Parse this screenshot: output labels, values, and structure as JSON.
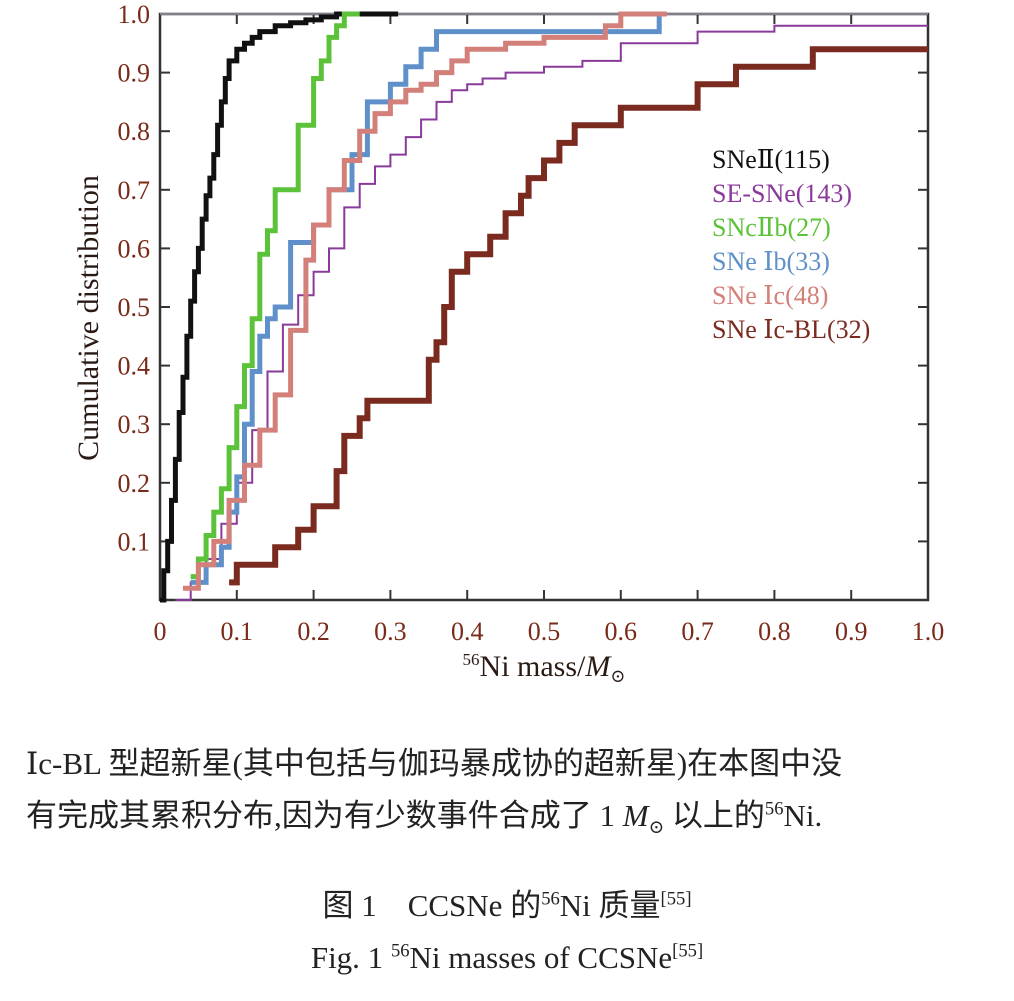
{
  "chart_data": {
    "type": "line",
    "xlabel_sup": "56",
    "xlabel_main": "Ni mass/",
    "xlabel_unit": "M",
    "xlabel_unit_sub": "⊙",
    "ylabel": "Cumulative distribution",
    "xlim": [
      0,
      1.0
    ],
    "ylim": [
      0,
      1.0
    ],
    "x_ticks": [
      "0",
      "0.1",
      "0.2",
      "0.3",
      "0.4",
      "0.5",
      "0.6",
      "0.7",
      "0.8",
      "0.9",
      "1.0"
    ],
    "y_ticks": [
      "0.1",
      "0.2",
      "0.3",
      "0.4",
      "0.5",
      "0.6",
      "0.7",
      "0.8",
      "0.9",
      "1.0"
    ],
    "grid": false,
    "legend_position": "right",
    "series": [
      {
        "name": "SNeⅡ(115)",
        "color": "#111111",
        "x": [
          0.0,
          0.005,
          0.01,
          0.015,
          0.02,
          0.025,
          0.03,
          0.035,
          0.04,
          0.045,
          0.05,
          0.055,
          0.06,
          0.065,
          0.07,
          0.075,
          0.08,
          0.085,
          0.09,
          0.1,
          0.11,
          0.12,
          0.13,
          0.14,
          0.15,
          0.17,
          0.19,
          0.21,
          0.23,
          0.26,
          0.31
        ],
        "y": [
          0.0,
          0.05,
          0.1,
          0.17,
          0.24,
          0.32,
          0.38,
          0.45,
          0.51,
          0.56,
          0.6,
          0.65,
          0.69,
          0.72,
          0.76,
          0.81,
          0.85,
          0.89,
          0.92,
          0.94,
          0.95,
          0.96,
          0.97,
          0.97,
          0.98,
          0.985,
          0.99,
          0.995,
          1.0,
          1.0,
          1.0
        ]
      },
      {
        "name": "SE-SNe(143)",
        "color": "#8a3a9a",
        "x": [
          0.02,
          0.04,
          0.06,
          0.08,
          0.1,
          0.12,
          0.14,
          0.16,
          0.18,
          0.2,
          0.22,
          0.24,
          0.26,
          0.28,
          0.3,
          0.32,
          0.34,
          0.36,
          0.38,
          0.4,
          0.42,
          0.45,
          0.5,
          0.55,
          0.6,
          0.7,
          0.8,
          0.9,
          1.0
        ],
        "y": [
          0.0,
          0.03,
          0.07,
          0.13,
          0.2,
          0.29,
          0.39,
          0.47,
          0.52,
          0.56,
          0.6,
          0.67,
          0.71,
          0.74,
          0.76,
          0.79,
          0.82,
          0.85,
          0.87,
          0.88,
          0.89,
          0.9,
          0.91,
          0.92,
          0.95,
          0.97,
          0.98,
          0.98,
          0.98
        ]
      },
      {
        "name": "SNcⅡb(27)",
        "color": "#5cc23a",
        "x": [
          0.04,
          0.05,
          0.06,
          0.07,
          0.08,
          0.09,
          0.1,
          0.11,
          0.12,
          0.13,
          0.14,
          0.15,
          0.18,
          0.2,
          0.21,
          0.22,
          0.23,
          0.24,
          0.25,
          0.26
        ],
        "y": [
          0.04,
          0.07,
          0.11,
          0.15,
          0.19,
          0.26,
          0.33,
          0.4,
          0.48,
          0.59,
          0.63,
          0.7,
          0.81,
          0.89,
          0.92,
          0.96,
          0.98,
          1.0,
          1.0,
          1.0
        ]
      },
      {
        "name": "SNe Ⅰb(33)",
        "color": "#5f90c9",
        "x": [
          0.04,
          0.06,
          0.08,
          0.09,
          0.1,
          0.11,
          0.12,
          0.13,
          0.14,
          0.15,
          0.17,
          0.2,
          0.22,
          0.25,
          0.27,
          0.3,
          0.32,
          0.34,
          0.36,
          0.5,
          0.6,
          0.64,
          0.65
        ],
        "y": [
          0.03,
          0.06,
          0.09,
          0.15,
          0.21,
          0.3,
          0.39,
          0.45,
          0.48,
          0.5,
          0.61,
          0.64,
          0.7,
          0.76,
          0.85,
          0.88,
          0.91,
          0.94,
          0.97,
          0.97,
          0.97,
          0.97,
          1.0
        ]
      },
      {
        "name": "SNe Ⅰc(48)",
        "color": "#d4807a",
        "x": [
          0.03,
          0.05,
          0.07,
          0.09,
          0.11,
          0.13,
          0.15,
          0.17,
          0.19,
          0.2,
          0.22,
          0.24,
          0.26,
          0.28,
          0.3,
          0.32,
          0.34,
          0.36,
          0.38,
          0.4,
          0.45,
          0.5,
          0.55,
          0.58,
          0.6,
          0.66
        ],
        "y": [
          0.02,
          0.06,
          0.1,
          0.17,
          0.23,
          0.29,
          0.35,
          0.46,
          0.58,
          0.64,
          0.7,
          0.75,
          0.8,
          0.83,
          0.85,
          0.87,
          0.88,
          0.9,
          0.92,
          0.94,
          0.95,
          0.96,
          0.96,
          0.98,
          1.0,
          1.0
        ]
      },
      {
        "name": "SNe Ⅰc-BL(32)",
        "color": "#7a2a1e",
        "x": [
          0.09,
          0.1,
          0.15,
          0.18,
          0.2,
          0.23,
          0.24,
          0.26,
          0.27,
          0.33,
          0.35,
          0.36,
          0.37,
          0.38,
          0.4,
          0.43,
          0.45,
          0.47,
          0.48,
          0.5,
          0.52,
          0.54,
          0.55,
          0.58,
          0.6,
          0.65,
          0.7,
          0.73,
          0.75,
          0.82,
          0.85,
          0.92,
          1.0
        ],
        "y": [
          0.03,
          0.06,
          0.09,
          0.12,
          0.16,
          0.22,
          0.28,
          0.31,
          0.34,
          0.34,
          0.41,
          0.44,
          0.5,
          0.56,
          0.59,
          0.62,
          0.66,
          0.69,
          0.72,
          0.75,
          0.78,
          0.81,
          0.81,
          0.81,
          0.84,
          0.84,
          0.88,
          0.88,
          0.91,
          0.91,
          0.94,
          0.94,
          0.94
        ]
      }
    ]
  },
  "caption": {
    "note_line1": "Ⅰc-BL 型超新星(其中包括与伽玛暴成协的超新星)在本图中没",
    "note_line2_pre": "有完成其累积分布,因为有少数事件合成了 1 ",
    "note_line2_unit": "M",
    "note_line2_unit_sub": "⊙",
    "note_line2_mid": " 以上的",
    "note_line2_sup": "56",
    "note_line2_post": "Ni.",
    "zh_prefix": "图 1　CCSNe 的",
    "zh_sup": "56",
    "zh_suffix": "Ni 质量",
    "zh_ref": "[55]",
    "en_prefix": "Fig. 1 ",
    "en_sup": "56",
    "en_suffix": "Ni masses of CCSNe",
    "en_ref": "[55]"
  }
}
